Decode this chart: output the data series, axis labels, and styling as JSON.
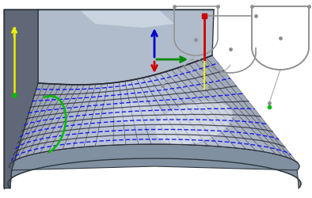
{
  "bg_color": "#ffffff",
  "surface_light": "#d0d8e8",
  "surface_mid": "#b0bccb",
  "surface_dark": "#8090a0",
  "surface_darker": "#606878",
  "edge_color": "#303840",
  "blue_path": "#1010ee",
  "green_arc": "#00bb00",
  "yellow_arrow": "#eeee00",
  "blue_arrow": "#0000cc",
  "green_arrow": "#008800",
  "red_arrow": "#cc0000",
  "gray_diag": "#909090",
  "white": "#ffffff",
  "figsize": [
    3.94,
    2.5
  ],
  "dpi": 100,
  "n_paths": 9,
  "n_contours": 7
}
